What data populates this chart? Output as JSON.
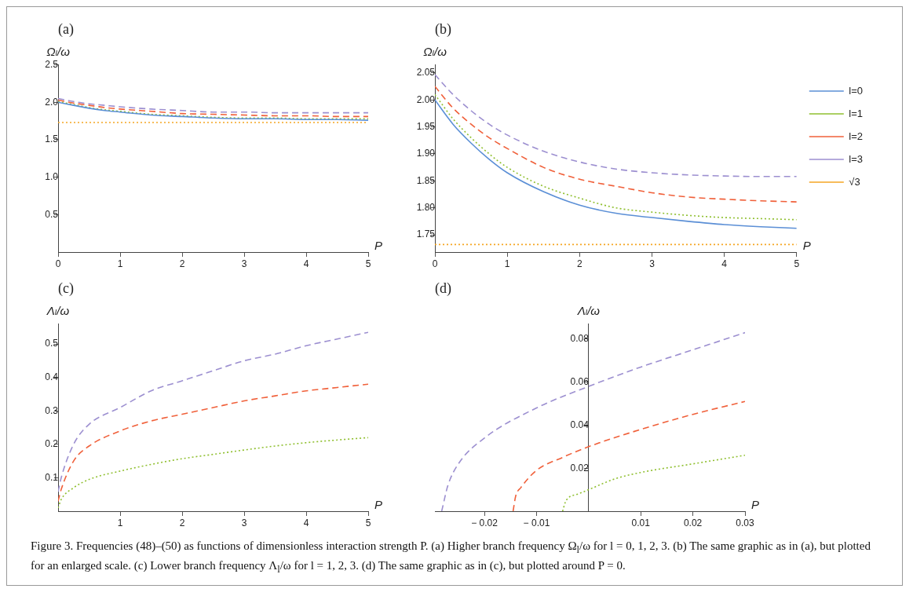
{
  "chart_data": [
    {
      "type": "line",
      "title": "(a)",
      "ylabel": "Ωₗ/ω",
      "xlabel": "P",
      "xlim": [
        0,
        5
      ],
      "ylim": [
        0,
        2.5
      ],
      "xticks": [
        0,
        1,
        2,
        3,
        4,
        5
      ],
      "yticks": [
        {
          "value": 0.5,
          "label": "0.5"
        },
        {
          "value": 1,
          "label": "1.0"
        },
        {
          "value": 1.5,
          "label": "1.5"
        },
        {
          "value": 2,
          "label": "2.0"
        },
        {
          "value": 2.5,
          "label": "2.5"
        }
      ],
      "grid": false,
      "legend": false,
      "x": [
        0,
        0.25,
        0.5,
        0.75,
        1,
        1.5,
        2,
        2.5,
        3,
        3.5,
        4,
        4.5,
        5
      ],
      "series": [
        {
          "color": "#5b8fd6",
          "line_style": "solid",
          "values": [
            2.0,
            1.96,
            1.92,
            1.89,
            1.87,
            1.83,
            1.81,
            1.79,
            1.78,
            1.78,
            1.77,
            1.77,
            1.76
          ]
        },
        {
          "color": "#8fbf2f",
          "line_style": "dotted",
          "values": [
            2.01,
            1.97,
            1.93,
            1.9,
            1.88,
            1.84,
            1.82,
            1.8,
            1.79,
            1.79,
            1.78,
            1.78,
            1.78
          ]
        },
        {
          "color": "#f0603a",
          "line_style": "dashed",
          "values": [
            2.03,
            1.99,
            1.96,
            1.93,
            1.91,
            1.88,
            1.85,
            1.84,
            1.83,
            1.82,
            1.82,
            1.81,
            1.81
          ]
        },
        {
          "color": "#9c8fd0",
          "line_style": "dashed",
          "values": [
            2.05,
            2.01,
            1.98,
            1.96,
            1.94,
            1.91,
            1.89,
            1.87,
            1.87,
            1.86,
            1.86,
            1.86,
            1.86
          ]
        },
        {
          "color": "#f5a623",
          "line_style": "dotted",
          "values": [
            1.73,
            1.73,
            1.73,
            1.73,
            1.73,
            1.73,
            1.73,
            1.73,
            1.73,
            1.73,
            1.73,
            1.73,
            1.73
          ]
        }
      ],
      "annotations": [
        "Figure 3. Frequencies (48)–(50) as functions of dimensionless interaction strength P. (a) Higher branch frequency Ω$_{l}$/ω for l = 0, 1, 2, 3. (b) The same graphic as in (a), but plotted for an enlarged scale. (c) Lower branch frequency Λ$_{l}$/ω for l = 1, 2, 3. (d) The same graphic as in (c), but plotted around P = 0."
      ]
    },
    {
      "type": "line",
      "title": "(b)",
      "ylabel": "Ωₗ/ω",
      "xlabel": "P",
      "xlim": [
        0,
        5
      ],
      "ylim": [
        1.718,
        2.065
      ],
      "xticks": [
        0,
        1,
        2,
        3,
        4,
        5
      ],
      "yticks": [
        {
          "value": 1.75,
          "label": "1.75"
        },
        {
          "value": 1.8,
          "label": "1.80"
        },
        {
          "value": 1.85,
          "label": "1.85"
        },
        {
          "value": 1.9,
          "label": "1.90"
        },
        {
          "value": 1.95,
          "label": "1.95"
        },
        {
          "value": 2,
          "label": "2.00"
        },
        {
          "value": 2.05,
          "label": "2.05"
        }
      ],
      "grid": false,
      "legend": "right",
      "x": [
        0,
        0.25,
        0.5,
        0.75,
        1,
        1.5,
        2,
        2.5,
        3,
        3.5,
        4,
        4.5,
        5
      ],
      "series": [
        {
          "name": "l=0",
          "color": "#5b8fd6",
          "line_style": "solid",
          "values": [
            2.0,
            1.955,
            1.92,
            1.89,
            1.865,
            1.83,
            1.805,
            1.79,
            1.782,
            1.775,
            1.769,
            1.765,
            1.762
          ]
        },
        {
          "name": "l=1",
          "color": "#8fbf2f",
          "line_style": "dotted",
          "values": [
            2.01,
            1.965,
            1.93,
            1.9,
            1.875,
            1.84,
            1.818,
            1.8,
            1.792,
            1.786,
            1.782,
            1.78,
            1.778
          ]
        },
        {
          "name": "l=2",
          "color": "#f0603a",
          "line_style": "dashed",
          "values": [
            2.025,
            1.985,
            1.955,
            1.93,
            1.91,
            1.875,
            1.853,
            1.84,
            1.828,
            1.82,
            1.816,
            1.813,
            1.811
          ]
        },
        {
          "name": "l=3",
          "color": "#9c8fd0",
          "line_style": "dashed",
          "values": [
            2.047,
            2.01,
            1.98,
            1.955,
            1.935,
            1.905,
            1.885,
            1.872,
            1.865,
            1.861,
            1.859,
            1.858,
            1.858
          ]
        },
        {
          "name": "√3",
          "color": "#f5a623",
          "line_style": "dotted",
          "values": [
            1.732,
            1.732,
            1.732,
            1.732,
            1.732,
            1.732,
            1.732,
            1.732,
            1.732,
            1.732,
            1.732,
            1.732,
            1.732
          ]
        }
      ]
    },
    {
      "type": "line",
      "title": "(c)",
      "ylabel": "Λₗ/ω",
      "xlabel": "P",
      "xlim": [
        0,
        5
      ],
      "ylim": [
        0,
        0.56
      ],
      "xticks": [
        1,
        2,
        3,
        4,
        5
      ],
      "yticks": [
        0.1,
        0.2,
        0.3,
        0.4,
        0.5
      ],
      "grid": false,
      "legend": false,
      "x": [
        0,
        0.05,
        0.25,
        0.5,
        1,
        1.5,
        2,
        2.5,
        3,
        3.5,
        4,
        4.5,
        5
      ],
      "series": [
        {
          "color": "#8fbf2f",
          "line_style": "dotted",
          "values": [
            0.01,
            0.035,
            0.07,
            0.095,
            0.12,
            0.14,
            0.157,
            0.17,
            0.183,
            0.195,
            0.205,
            0.213,
            0.22
          ]
        },
        {
          "color": "#f0603a",
          "line_style": "dashed",
          "values": [
            0.03,
            0.065,
            0.15,
            0.195,
            0.24,
            0.27,
            0.29,
            0.31,
            0.33,
            0.345,
            0.36,
            0.37,
            0.38
          ]
        },
        {
          "color": "#9c8fd0",
          "line_style": "dashed",
          "values": [
            0.058,
            0.1,
            0.2,
            0.26,
            0.31,
            0.36,
            0.39,
            0.42,
            0.45,
            0.47,
            0.495,
            0.515,
            0.535
          ]
        }
      ]
    },
    {
      "type": "line",
      "title": "(d)",
      "ylabel": "Λₗ/ω",
      "xlabel": "P",
      "xlim": [
        -0.0295,
        0.03
      ],
      "ylim": [
        0,
        0.087
      ],
      "xticks": [
        {
          "value": -0.02,
          "label": "− 0.02"
        },
        {
          "value": -0.01,
          "label": "− 0.01"
        },
        0.01,
        0.02,
        0.03
      ],
      "yticks": [
        0.02,
        0.04,
        0.06,
        0.08
      ],
      "grid": false,
      "legend": false,
      "series": [
        {
          "color": "#8fbf2f",
          "line_style": "dotted",
          "x": [
            -0.005,
            -0.0045,
            -0.004,
            -0.002,
            0,
            0.005,
            0.01,
            0.02,
            0.03
          ],
          "values": [
            0,
            0.004,
            0.006,
            0.008,
            0.01,
            0.015,
            0.018,
            0.022,
            0.026
          ]
        },
        {
          "color": "#f0603a",
          "line_style": "dashed",
          "x": [
            -0.0145,
            -0.014,
            -0.013,
            -0.01,
            -0.005,
            0,
            0.01,
            0.02,
            0.03
          ],
          "values": [
            0,
            0.007,
            0.011,
            0.019,
            0.025,
            0.03,
            0.038,
            0.045,
            0.051
          ]
        },
        {
          "color": "#9c8fd0",
          "line_style": "dashed",
          "x": [
            -0.0282,
            -0.027,
            -0.025,
            -0.02,
            -0.01,
            0,
            0.01,
            0.02,
            0.03
          ],
          "values": [
            0,
            0.012,
            0.022,
            0.034,
            0.048,
            0.058,
            0.067,
            0.075,
            0.083
          ]
        }
      ]
    }
  ]
}
